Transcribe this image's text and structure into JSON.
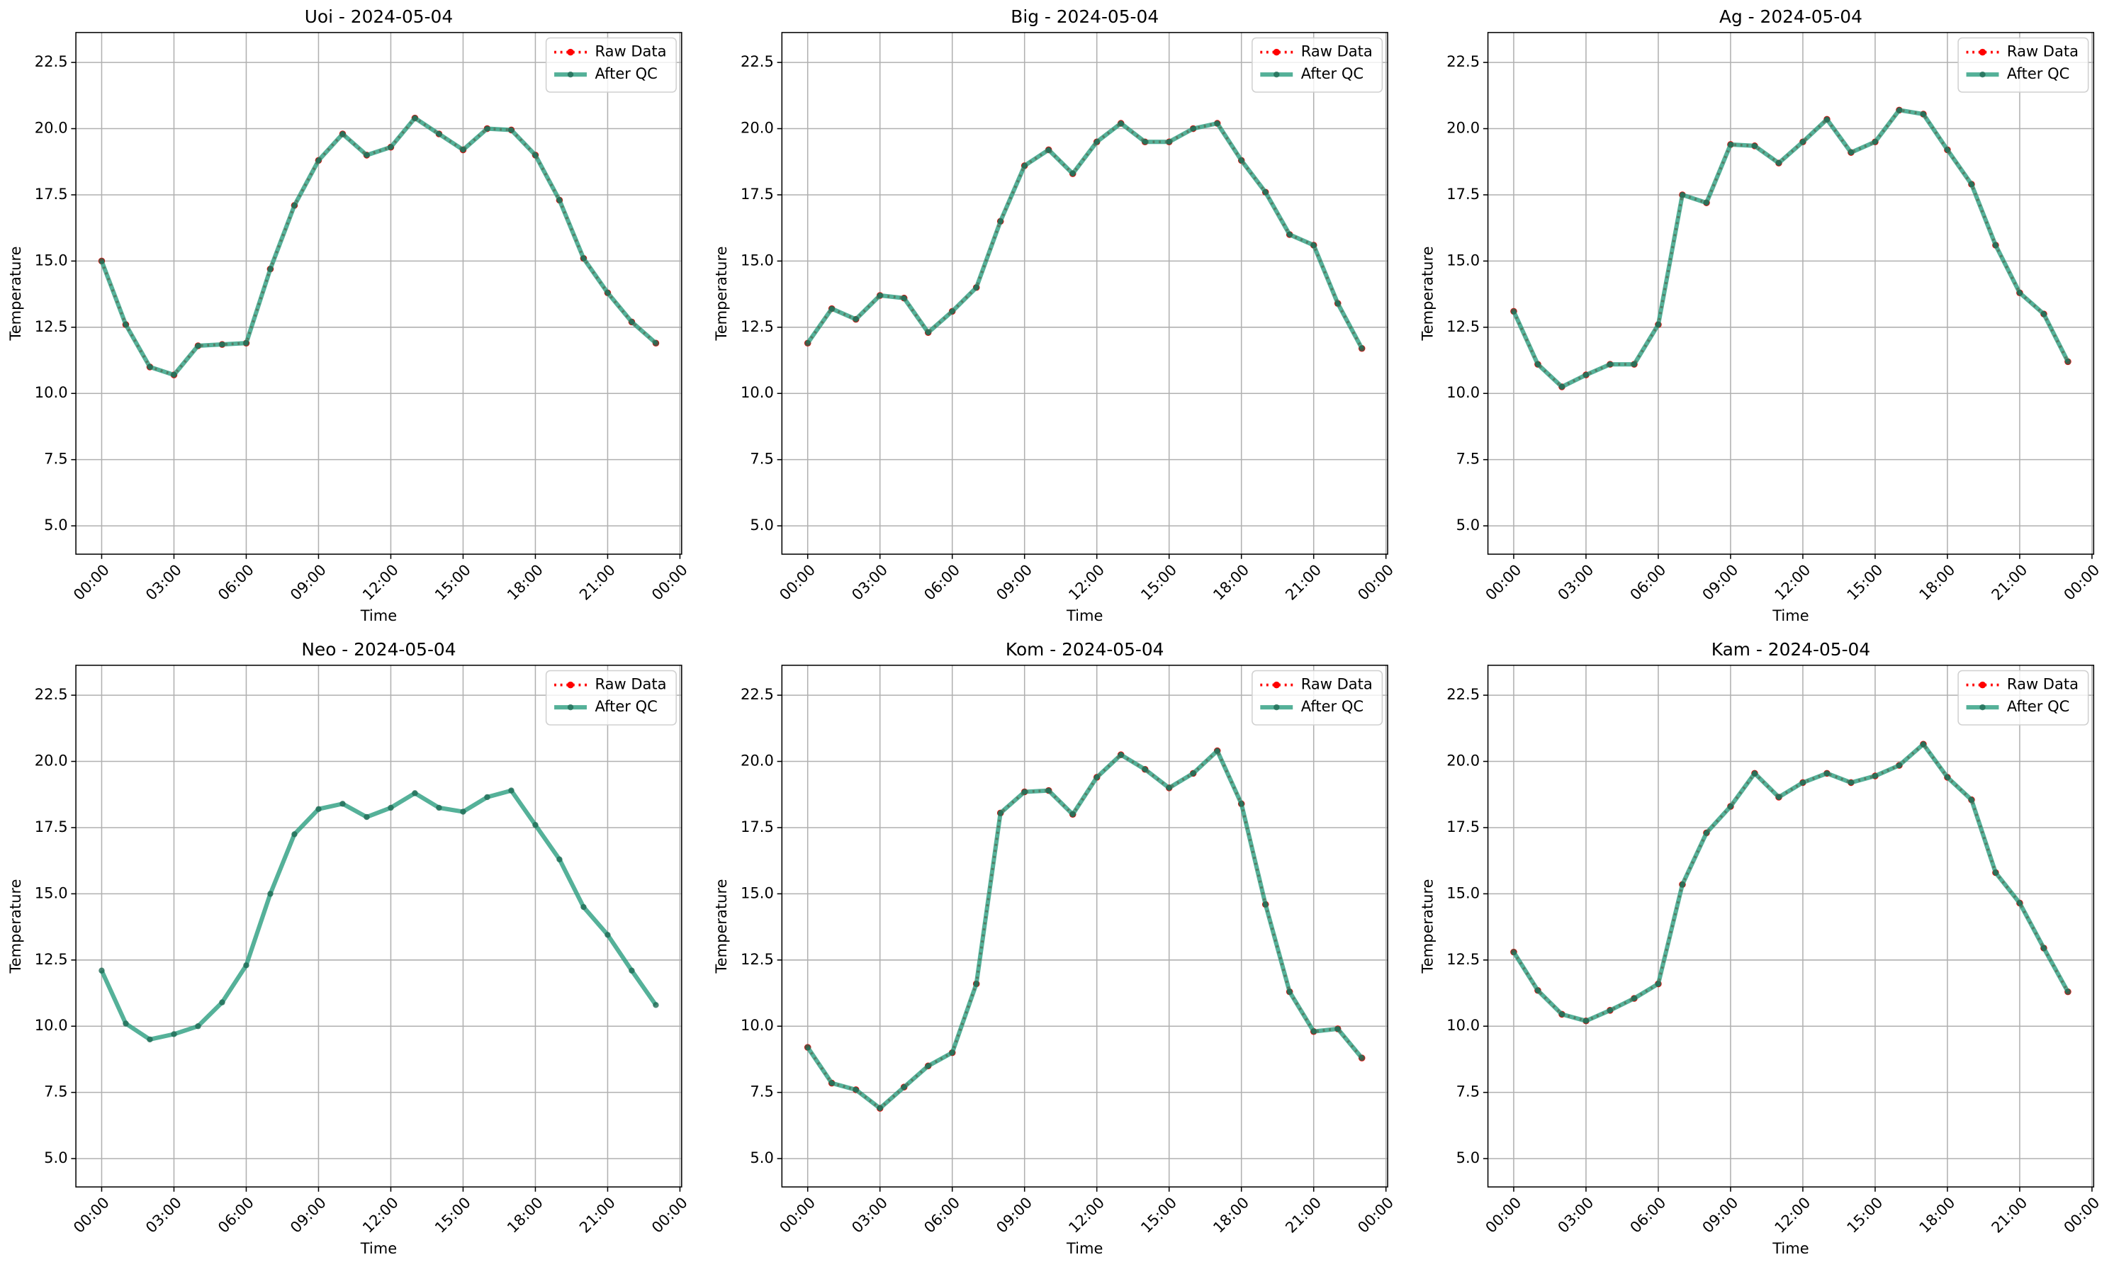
{
  "chart_data": [
    {
      "type": "line",
      "title": "Uoi - 2024-05-04",
      "xlabel": "Time",
      "ylabel": "Temperature",
      "x": [
        0,
        1,
        2,
        3,
        4,
        5,
        6,
        7,
        8,
        9,
        10,
        11,
        12,
        13,
        14,
        15,
        16,
        17,
        18,
        19,
        20,
        21,
        22,
        23
      ],
      "series": [
        {
          "name": "Raw Data",
          "color": "#ff0000",
          "values": [
            15.0,
            12.6,
            11.0,
            10.7,
            11.8,
            11.85,
            11.9,
            14.7,
            17.1,
            18.8,
            19.8,
            19.0,
            19.3,
            20.4,
            19.8,
            19.2,
            20.0,
            19.95,
            19.0,
            17.3,
            15.1,
            13.8,
            12.7,
            11.9
          ]
        },
        {
          "name": "After QC",
          "color": "#2a9d7f",
          "values": [
            15.0,
            12.6,
            11.0,
            10.7,
            11.8,
            11.85,
            11.9,
            14.7,
            17.1,
            18.8,
            19.8,
            19.0,
            19.3,
            20.4,
            19.8,
            19.2,
            20.0,
            19.95,
            19.0,
            17.3,
            15.1,
            13.8,
            12.7,
            11.9
          ]
        }
      ],
      "xlim": [
        -1.07,
        24.07
      ],
      "ylim": [
        3.93,
        23.63
      ],
      "xticks": [
        {
          "value": 0,
          "label": "00:00"
        },
        {
          "value": 3,
          "label": "03:00"
        },
        {
          "value": 6,
          "label": "06:00"
        },
        {
          "value": 9,
          "label": "09:00"
        },
        {
          "value": 12,
          "label": "12:00"
        },
        {
          "value": 15,
          "label": "15:00"
        },
        {
          "value": 18,
          "label": "18:00"
        },
        {
          "value": 21,
          "label": "21:00"
        },
        {
          "value": 24,
          "label": "00:00"
        }
      ],
      "yticks": [
        {
          "value": 5,
          "label": "5.0"
        },
        {
          "value": 7.5,
          "label": "7.5"
        },
        {
          "value": 10,
          "label": "10.0"
        },
        {
          "value": 12.5,
          "label": "12.5"
        },
        {
          "value": 15,
          "label": "15.0"
        },
        {
          "value": 17.5,
          "label": "17.5"
        },
        {
          "value": 20,
          "label": "20.0"
        },
        {
          "value": 22.5,
          "label": "22.5"
        }
      ],
      "grid": true,
      "legend": "upper right"
    },
    {
      "type": "line",
      "title": "Big - 2024-05-04",
      "xlabel": "Time",
      "ylabel": "Temperature",
      "x": [
        0,
        1,
        2,
        3,
        4,
        5,
        6,
        7,
        8,
        9,
        10,
        11,
        12,
        13,
        14,
        15,
        16,
        17,
        18,
        19,
        20,
        21,
        22,
        23
      ],
      "series": [
        {
          "name": "Raw Data",
          "color": "#ff0000",
          "values": [
            11.9,
            13.2,
            12.8,
            13.7,
            13.6,
            12.3,
            13.1,
            14.0,
            16.5,
            18.6,
            19.2,
            18.3,
            19.5,
            20.2,
            19.5,
            19.5,
            20.0,
            20.2,
            18.8,
            17.6,
            16.0,
            15.6,
            13.4,
            11.7
          ]
        },
        {
          "name": "After QC",
          "color": "#2a9d7f",
          "values": [
            11.9,
            13.2,
            12.8,
            13.7,
            13.6,
            12.3,
            13.1,
            14.0,
            16.5,
            18.6,
            19.2,
            18.3,
            19.5,
            20.2,
            19.5,
            19.5,
            20.0,
            20.2,
            18.8,
            17.6,
            16.0,
            15.6,
            13.4,
            11.7
          ]
        }
      ],
      "xlim": [
        -1.07,
        24.07
      ],
      "ylim": [
        3.93,
        23.63
      ],
      "xticks": [
        {
          "value": 0,
          "label": "00:00"
        },
        {
          "value": 3,
          "label": "03:00"
        },
        {
          "value": 6,
          "label": "06:00"
        },
        {
          "value": 9,
          "label": "09:00"
        },
        {
          "value": 12,
          "label": "12:00"
        },
        {
          "value": 15,
          "label": "15:00"
        },
        {
          "value": 18,
          "label": "18:00"
        },
        {
          "value": 21,
          "label": "21:00"
        },
        {
          "value": 24,
          "label": "00:00"
        }
      ],
      "yticks": [
        {
          "value": 5,
          "label": "5.0"
        },
        {
          "value": 7.5,
          "label": "7.5"
        },
        {
          "value": 10,
          "label": "10.0"
        },
        {
          "value": 12.5,
          "label": "12.5"
        },
        {
          "value": 15,
          "label": "15.0"
        },
        {
          "value": 17.5,
          "label": "17.5"
        },
        {
          "value": 20,
          "label": "20.0"
        },
        {
          "value": 22.5,
          "label": "22.5"
        }
      ],
      "grid": true,
      "legend": "upper right"
    },
    {
      "type": "line",
      "title": "Ag - 2024-05-04",
      "xlabel": "Time",
      "ylabel": "Temperature",
      "x": [
        0,
        1,
        2,
        3,
        4,
        5,
        6,
        7,
        8,
        9,
        10,
        11,
        12,
        13,
        14,
        15,
        16,
        17,
        18,
        19,
        20,
        21,
        22,
        23
      ],
      "series": [
        {
          "name": "Raw Data",
          "color": "#ff0000",
          "values": [
            13.1,
            11.1,
            10.25,
            10.7,
            11.1,
            11.1,
            12.6,
            17.5,
            17.2,
            19.4,
            19.35,
            18.7,
            19.5,
            20.35,
            19.1,
            19.5,
            20.7,
            20.55,
            19.2,
            17.9,
            15.6,
            13.8,
            13.0,
            11.2
          ]
        },
        {
          "name": "After QC",
          "color": "#2a9d7f",
          "values": [
            13.1,
            11.1,
            10.25,
            10.7,
            11.1,
            11.1,
            12.6,
            17.5,
            17.2,
            19.4,
            19.35,
            18.7,
            19.5,
            20.35,
            19.1,
            19.5,
            20.7,
            20.55,
            19.2,
            17.9,
            15.6,
            13.8,
            13.0,
            11.2
          ]
        }
      ],
      "xlim": [
        -1.07,
        24.07
      ],
      "ylim": [
        3.93,
        23.63
      ],
      "xticks": [
        {
          "value": 0,
          "label": "00:00"
        },
        {
          "value": 3,
          "label": "03:00"
        },
        {
          "value": 6,
          "label": "06:00"
        },
        {
          "value": 9,
          "label": "09:00"
        },
        {
          "value": 12,
          "label": "12:00"
        },
        {
          "value": 15,
          "label": "15:00"
        },
        {
          "value": 18,
          "label": "18:00"
        },
        {
          "value": 21,
          "label": "21:00"
        },
        {
          "value": 24,
          "label": "00:00"
        }
      ],
      "yticks": [
        {
          "value": 5,
          "label": "5.0"
        },
        {
          "value": 7.5,
          "label": "7.5"
        },
        {
          "value": 10,
          "label": "10.0"
        },
        {
          "value": 12.5,
          "label": "12.5"
        },
        {
          "value": 15,
          "label": "15.0"
        },
        {
          "value": 17.5,
          "label": "17.5"
        },
        {
          "value": 20,
          "label": "20.0"
        },
        {
          "value": 22.5,
          "label": "22.5"
        }
      ],
      "grid": true,
      "legend": "upper right"
    },
    {
      "type": "line",
      "title": "Neo - 2024-05-04",
      "xlabel": "Time",
      "ylabel": "Temperature",
      "x": [
        0,
        1,
        2,
        3,
        4,
        5,
        6,
        7,
        8,
        9,
        10,
        11,
        12,
        13,
        14,
        15,
        16,
        17,
        18,
        19,
        20,
        21,
        22,
        23
      ],
      "series": [
        {
          "name": "Raw Data",
          "color": "#ff0000",
          "values": [
            null,
            null,
            null,
            null,
            null,
            null,
            null,
            null,
            null,
            null,
            null,
            null,
            null,
            null,
            null,
            null,
            null,
            null,
            null,
            null,
            null,
            null,
            null,
            null
          ]
        },
        {
          "name": "After QC",
          "color": "#2a9d7f",
          "values": [
            12.1,
            10.1,
            9.5,
            9.7,
            10.0,
            10.9,
            12.3,
            15.0,
            17.25,
            18.2,
            18.4,
            17.9,
            18.25,
            18.8,
            18.25,
            18.1,
            18.65,
            18.9,
            17.6,
            16.3,
            14.5,
            13.45,
            12.1,
            10.8
          ]
        }
      ],
      "xlim": [
        -1.07,
        24.07
      ],
      "ylim": [
        3.93,
        23.63
      ],
      "xticks": [
        {
          "value": 0,
          "label": "00:00"
        },
        {
          "value": 3,
          "label": "03:00"
        },
        {
          "value": 6,
          "label": "06:00"
        },
        {
          "value": 9,
          "label": "09:00"
        },
        {
          "value": 12,
          "label": "12:00"
        },
        {
          "value": 15,
          "label": "15:00"
        },
        {
          "value": 18,
          "label": "18:00"
        },
        {
          "value": 21,
          "label": "21:00"
        },
        {
          "value": 24,
          "label": "00:00"
        }
      ],
      "yticks": [
        {
          "value": 5,
          "label": "5.0"
        },
        {
          "value": 7.5,
          "label": "7.5"
        },
        {
          "value": 10,
          "label": "10.0"
        },
        {
          "value": 12.5,
          "label": "12.5"
        },
        {
          "value": 15,
          "label": "15.0"
        },
        {
          "value": 17.5,
          "label": "17.5"
        },
        {
          "value": 20,
          "label": "20.0"
        },
        {
          "value": 22.5,
          "label": "22.5"
        }
      ],
      "grid": true,
      "legend": "upper right"
    },
    {
      "type": "line",
      "title": "Kom - 2024-05-04",
      "xlabel": "Time",
      "ylabel": "Temperature",
      "x": [
        0,
        1,
        2,
        3,
        4,
        5,
        6,
        7,
        8,
        9,
        10,
        11,
        12,
        13,
        14,
        15,
        16,
        17,
        18,
        19,
        20,
        21,
        22,
        23
      ],
      "series": [
        {
          "name": "Raw Data",
          "color": "#ff0000",
          "values": [
            9.2,
            7.85,
            7.6,
            6.9,
            7.7,
            8.5,
            9.0,
            11.6,
            18.05,
            18.85,
            18.9,
            18.0,
            19.4,
            20.25,
            19.7,
            19.0,
            19.55,
            20.4,
            18.4,
            14.6,
            11.3,
            9.8,
            9.9,
            8.8
          ]
        },
        {
          "name": "After QC",
          "color": "#2a9d7f",
          "values": [
            9.2,
            7.85,
            7.6,
            6.9,
            7.7,
            8.5,
            9.0,
            11.6,
            18.05,
            18.85,
            18.9,
            18.0,
            19.4,
            20.25,
            19.7,
            19.0,
            19.55,
            20.4,
            18.4,
            14.6,
            11.3,
            9.8,
            9.9,
            8.8
          ]
        }
      ],
      "xlim": [
        -1.07,
        24.07
      ],
      "ylim": [
        3.93,
        23.63
      ],
      "xticks": [
        {
          "value": 0,
          "label": "00:00"
        },
        {
          "value": 3,
          "label": "03:00"
        },
        {
          "value": 6,
          "label": "06:00"
        },
        {
          "value": 9,
          "label": "09:00"
        },
        {
          "value": 12,
          "label": "12:00"
        },
        {
          "value": 15,
          "label": "15:00"
        },
        {
          "value": 18,
          "label": "18:00"
        },
        {
          "value": 21,
          "label": "21:00"
        },
        {
          "value": 24,
          "label": "00:00"
        }
      ],
      "yticks": [
        {
          "value": 5,
          "label": "5.0"
        },
        {
          "value": 7.5,
          "label": "7.5"
        },
        {
          "value": 10,
          "label": "10.0"
        },
        {
          "value": 12.5,
          "label": "12.5"
        },
        {
          "value": 15,
          "label": "15.0"
        },
        {
          "value": 17.5,
          "label": "17.5"
        },
        {
          "value": 20,
          "label": "20.0"
        },
        {
          "value": 22.5,
          "label": "22.5"
        }
      ],
      "grid": true,
      "legend": "upper right"
    },
    {
      "type": "line",
      "title": "Kam - 2024-05-04",
      "xlabel": "Time",
      "ylabel": "Temperature",
      "x": [
        0,
        1,
        2,
        3,
        4,
        5,
        6,
        7,
        8,
        9,
        10,
        11,
        12,
        13,
        14,
        15,
        16,
        17,
        18,
        19,
        20,
        21,
        22,
        23
      ],
      "series": [
        {
          "name": "Raw Data",
          "color": "#ff0000",
          "values": [
            12.8,
            11.35,
            10.45,
            10.2,
            10.6,
            11.05,
            11.6,
            15.35,
            17.3,
            18.3,
            19.55,
            18.65,
            19.2,
            19.55,
            19.2,
            19.45,
            19.85,
            20.65,
            19.4,
            18.55,
            15.8,
            14.65,
            12.95,
            11.3
          ]
        },
        {
          "name": "After QC",
          "color": "#2a9d7f",
          "values": [
            12.8,
            11.35,
            10.45,
            10.2,
            10.6,
            11.05,
            11.6,
            15.35,
            17.3,
            18.3,
            19.55,
            18.65,
            19.2,
            19.55,
            19.2,
            19.45,
            19.85,
            20.65,
            19.4,
            18.55,
            15.8,
            14.65,
            12.95,
            11.3
          ]
        }
      ],
      "xlim": [
        -1.07,
        24.07
      ],
      "ylim": [
        3.93,
        23.63
      ],
      "xticks": [
        {
          "value": 0,
          "label": "00:00"
        },
        {
          "value": 3,
          "label": "03:00"
        },
        {
          "value": 6,
          "label": "06:00"
        },
        {
          "value": 9,
          "label": "09:00"
        },
        {
          "value": 12,
          "label": "12:00"
        },
        {
          "value": 15,
          "label": "15:00"
        },
        {
          "value": 18,
          "label": "18:00"
        },
        {
          "value": 21,
          "label": "21:00"
        },
        {
          "value": 24,
          "label": "00:00"
        }
      ],
      "yticks": [
        {
          "value": 5,
          "label": "5.0"
        },
        {
          "value": 7.5,
          "label": "7.5"
        },
        {
          "value": 10,
          "label": "10.0"
        },
        {
          "value": 12.5,
          "label": "12.5"
        },
        {
          "value": 15,
          "label": "15.0"
        },
        {
          "value": 17.5,
          "label": "17.5"
        },
        {
          "value": 20,
          "label": "20.0"
        },
        {
          "value": 22.5,
          "label": "22.5"
        }
      ],
      "grid": true,
      "legend": "upper right"
    }
  ]
}
